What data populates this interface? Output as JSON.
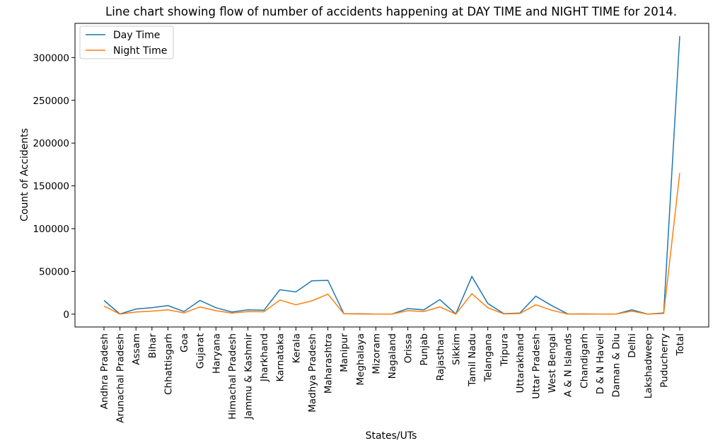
{
  "chart_data": {
    "type": "line",
    "title": "Line chart showing flow of number of accidents happening at DAY TIME and NIGHT TIME for 2014.",
    "xlabel": "States/UTs",
    "ylabel": "Count of Accidents",
    "ylim": [
      -15000,
      340000
    ],
    "yticks": [
      0,
      50000,
      100000,
      150000,
      200000,
      250000,
      300000
    ],
    "grid": false,
    "legend_position": "top-left",
    "categories": [
      "Andhra Pradesh",
      "Arunachal Pradesh",
      "Assam",
      "Bihar",
      "Chhattisgarh",
      "Goa",
      "Gujarat",
      "Haryana",
      "Himachal Pradesh",
      "Jammu & Kashmir",
      "Jharkhand",
      "Karnataka",
      "Kerala",
      "Madhya Pradesh",
      "Maharashtra",
      "Manipur",
      "Meghalaya",
      "Mizoram",
      "Nagaland",
      "Orissa",
      "Punjab",
      "Rajasthan",
      "Sikkim",
      "Tamil Nadu",
      "Telangana",
      "Tripura",
      "Uttarakhand",
      "Uttar Pradesh",
      "West Bengal",
      "A & N Islands",
      "Chandigarh",
      "D & N Haveli",
      "Daman & Diu",
      "Delhi",
      "Lakshadweep",
      "Puducherry",
      "Total"
    ],
    "series": [
      {
        "name": "Day Time",
        "color": "#1f77b4",
        "values": [
          16000,
          200,
          6000,
          7500,
          10000,
          3000,
          16000,
          7500,
          2500,
          5000,
          4500,
          28500,
          26000,
          39000,
          39500,
          500,
          400,
          100,
          100,
          6500,
          5000,
          17000,
          200,
          44000,
          12500,
          600,
          1200,
          21000,
          10000,
          200,
          300,
          150,
          100,
          5000,
          10,
          1500,
          325000
        ]
      },
      {
        "name": "Night Time",
        "color": "#ff7f0e",
        "values": [
          9500,
          100,
          2500,
          3500,
          5000,
          1500,
          8500,
          4000,
          1200,
          3000,
          2800,
          16500,
          11000,
          15500,
          23500,
          400,
          200,
          50,
          50,
          4000,
          3000,
          8500,
          100,
          24000,
          7500,
          300,
          700,
          11000,
          4500,
          100,
          150,
          80,
          50,
          3500,
          5,
          800,
          165000
        ]
      }
    ]
  }
}
